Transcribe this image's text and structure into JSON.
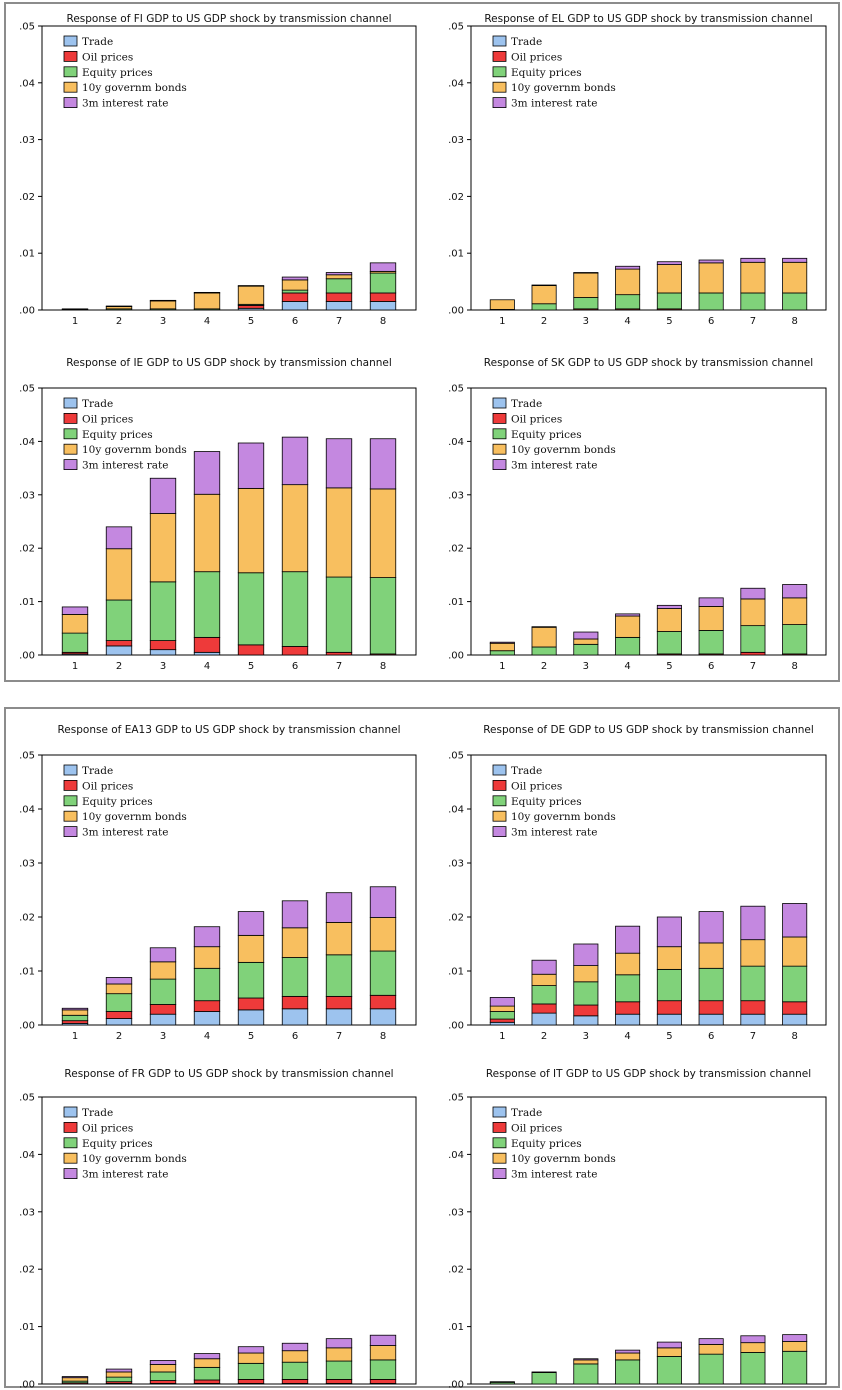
{
  "legend": [
    "Trade",
    "Oil prices",
    "Equity prices",
    "10y governm bonds",
    "3m interest rate"
  ],
  "colors": [
    "#9dc3ee",
    "#ee3a3a",
    "#80d27a",
    "#f8bf5f",
    "#c488e0"
  ],
  "chart_data": [
    {
      "type": "bar",
      "stacked": true,
      "title": "Response of FI GDP to US GDP shock by transmission channel",
      "categories": [
        "1",
        "2",
        "3",
        "4",
        "5",
        "6",
        "7",
        "8"
      ],
      "yticks": [
        ".00",
        ".01",
        ".02",
        ".03",
        ".04",
        ".05"
      ],
      "ylim": [
        0,
        0.05
      ],
      "series": [
        {
          "name": "Trade",
          "values": [
            0.0,
            0.0,
            0.0,
            0.0,
            0.0003,
            0.0015,
            0.0015,
            0.0015
          ]
        },
        {
          "name": "Oil prices",
          "values": [
            0.0,
            0.0,
            0.0,
            0.0,
            0.0005,
            0.0015,
            0.0015,
            0.0015
          ]
        },
        {
          "name": "Equity prices",
          "values": [
            0.0001,
            0.0002,
            0.0002,
            0.0002,
            0.0002,
            0.0005,
            0.0025,
            0.0035
          ]
        },
        {
          "name": "10y governm bonds",
          "values": [
            0.0001,
            0.0004,
            0.0014,
            0.0028,
            0.0032,
            0.0018,
            0.0007,
            0.0003
          ]
        },
        {
          "name": "3m interest rate",
          "values": [
            0.0,
            0.0001,
            0.0001,
            0.0001,
            0.0001,
            0.0005,
            0.0004,
            0.0015
          ]
        }
      ]
    },
    {
      "type": "bar",
      "stacked": true,
      "title": "Response of EL GDP to US GDP shock by transmission channel",
      "categories": [
        "1",
        "2",
        "3",
        "4",
        "5",
        "6",
        "7",
        "8"
      ],
      "yticks": [
        ".00",
        ".01",
        ".02",
        ".03",
        ".04",
        ".05"
      ],
      "ylim": [
        0,
        0.05
      ],
      "series": [
        {
          "name": "Trade",
          "values": [
            0.0,
            0.0,
            0.0,
            0.0,
            0.0,
            0.0,
            0.0,
            0.0
          ]
        },
        {
          "name": "Oil prices",
          "values": [
            0.0,
            0.0,
            0.0002,
            0.0002,
            0.0002,
            0.0,
            0.0,
            0.0
          ]
        },
        {
          "name": "Equity prices",
          "values": [
            0.0001,
            0.0011,
            0.002,
            0.0025,
            0.0028,
            0.003,
            0.003,
            0.003
          ]
        },
        {
          "name": "10y governm bonds",
          "values": [
            0.0017,
            0.0032,
            0.0043,
            0.0045,
            0.005,
            0.0053,
            0.0054,
            0.0054
          ]
        },
        {
          "name": "3m interest rate",
          "values": [
            0.0,
            0.0001,
            0.0001,
            0.0005,
            0.0005,
            0.0005,
            0.0007,
            0.0007
          ]
        }
      ]
    },
    {
      "type": "bar",
      "stacked": true,
      "title": "Response of IE GDP to US GDP shock by transmission channel",
      "categories": [
        "1",
        "2",
        "3",
        "4",
        "5",
        "6",
        "7",
        "8"
      ],
      "yticks": [
        ".00",
        ".01",
        ".02",
        ".03",
        ".04",
        ".05"
      ],
      "ylim": [
        0,
        0.05
      ],
      "series": [
        {
          "name": "Trade",
          "values": [
            0.0002,
            0.0017,
            0.001,
            0.0005,
            0.0,
            0.0,
            0.0,
            0.0
          ]
        },
        {
          "name": "Oil prices",
          "values": [
            0.0003,
            0.001,
            0.0017,
            0.0028,
            0.0019,
            0.0016,
            0.0005,
            0.0002
          ]
        },
        {
          "name": "Equity prices",
          "values": [
            0.0036,
            0.0076,
            0.011,
            0.0123,
            0.0135,
            0.014,
            0.0141,
            0.0143
          ]
        },
        {
          "name": "10y governm bonds",
          "values": [
            0.0035,
            0.0096,
            0.0128,
            0.0145,
            0.0158,
            0.0163,
            0.0167,
            0.0166
          ]
        },
        {
          "name": "3m interest rate",
          "values": [
            0.0014,
            0.0041,
            0.0066,
            0.008,
            0.0085,
            0.0089,
            0.0092,
            0.0094
          ]
        }
      ]
    },
    {
      "type": "bar",
      "stacked": true,
      "title": "Response of SK GDP to US GDP shock by transmission channel",
      "categories": [
        "1",
        "2",
        "3",
        "4",
        "5",
        "6",
        "7",
        "8"
      ],
      "yticks": [
        ".00",
        ".01",
        ".02",
        ".03",
        ".04",
        ".05"
      ],
      "ylim": [
        0,
        0.05
      ],
      "series": [
        {
          "name": "Trade",
          "values": [
            0.0,
            0.0,
            0.0,
            0.0,
            0.0,
            0.0,
            0.0,
            0.0
          ]
        },
        {
          "name": "Oil prices",
          "values": [
            0.0,
            0.0,
            0.0,
            0.0,
            0.0002,
            0.0002,
            0.0005,
            0.0002
          ]
        },
        {
          "name": "Equity prices",
          "values": [
            0.0008,
            0.0015,
            0.002,
            0.0033,
            0.0042,
            0.0044,
            0.005,
            0.0055
          ]
        },
        {
          "name": "10y governm bonds",
          "values": [
            0.0014,
            0.0037,
            0.001,
            0.004,
            0.0043,
            0.0045,
            0.005,
            0.005
          ]
        },
        {
          "name": "3m interest rate",
          "values": [
            0.0002,
            0.0001,
            0.0013,
            0.0004,
            0.0006,
            0.0016,
            0.002,
            0.0025
          ]
        }
      ]
    },
    {
      "type": "bar",
      "stacked": true,
      "title": "Response of EA13 GDP to US GDP shock by transmission channel",
      "categories": [
        "1",
        "2",
        "3",
        "4",
        "5",
        "6",
        "7",
        "8"
      ],
      "yticks": [
        ".00",
        ".01",
        ".02",
        ".03",
        ".04",
        ".05"
      ],
      "ylim": [
        0,
        0.05
      ],
      "series": [
        {
          "name": "Trade",
          "values": [
            0.0003,
            0.0012,
            0.002,
            0.0025,
            0.0028,
            0.003,
            0.003,
            0.003
          ]
        },
        {
          "name": "Oil prices",
          "values": [
            0.0005,
            0.0013,
            0.0018,
            0.002,
            0.0022,
            0.0023,
            0.0023,
            0.0025
          ]
        },
        {
          "name": "Equity prices",
          "values": [
            0.001,
            0.0033,
            0.0047,
            0.006,
            0.0066,
            0.0072,
            0.0077,
            0.0082
          ]
        },
        {
          "name": "10y governm bonds",
          "values": [
            0.001,
            0.0018,
            0.0032,
            0.004,
            0.005,
            0.0055,
            0.006,
            0.0062
          ]
        },
        {
          "name": "3m interest rate",
          "values": [
            0.0003,
            0.0012,
            0.0026,
            0.0037,
            0.0044,
            0.005,
            0.0055,
            0.0057
          ]
        }
      ]
    },
    {
      "type": "bar",
      "stacked": true,
      "title": "Response of DE GDP to US GDP shock by transmission channel",
      "categories": [
        "1",
        "2",
        "3",
        "4",
        "5",
        "6",
        "7",
        "8"
      ],
      "yticks": [
        ".00",
        ".01",
        ".02",
        ".03",
        ".04",
        ".05"
      ],
      "ylim": [
        0,
        0.05
      ],
      "series": [
        {
          "name": "Trade",
          "values": [
            0.0005,
            0.0022,
            0.0017,
            0.002,
            0.002,
            0.002,
            0.002,
            0.002
          ]
        },
        {
          "name": "Oil prices",
          "values": [
            0.0006,
            0.0017,
            0.002,
            0.0023,
            0.0025,
            0.0025,
            0.0025,
            0.0023
          ]
        },
        {
          "name": "Equity prices",
          "values": [
            0.0014,
            0.0034,
            0.0043,
            0.005,
            0.0058,
            0.006,
            0.0064,
            0.0066
          ]
        },
        {
          "name": "10y governm bonds",
          "values": [
            0.001,
            0.0021,
            0.003,
            0.004,
            0.0042,
            0.0047,
            0.0049,
            0.0054
          ]
        },
        {
          "name": "3m interest rate",
          "values": [
            0.0016,
            0.0026,
            0.004,
            0.005,
            0.0055,
            0.0058,
            0.0062,
            0.0062
          ]
        }
      ]
    },
    {
      "type": "bar",
      "stacked": true,
      "title": "Response of FR GDP to US GDP shock by transmission channel",
      "categories": [
        "1",
        "2",
        "3",
        "4",
        "5",
        "6",
        "7",
        "8"
      ],
      "yticks": [
        ".00",
        ".01",
        ".02",
        ".03",
        ".04",
        ".05"
      ],
      "ylim": [
        0,
        0.05
      ],
      "series": [
        {
          "name": "Trade",
          "values": [
            0.0,
            0.0001,
            0.0001,
            0.0001,
            0.0001,
            0.0001,
            0.0001,
            0.0001
          ]
        },
        {
          "name": "Oil prices",
          "values": [
            0.0002,
            0.0003,
            0.0005,
            0.0006,
            0.0007,
            0.0007,
            0.0007,
            0.0007
          ]
        },
        {
          "name": "Equity prices",
          "values": [
            0.0003,
            0.0008,
            0.0015,
            0.0022,
            0.0028,
            0.003,
            0.0032,
            0.0034
          ]
        },
        {
          "name": "10y governm bonds",
          "values": [
            0.0006,
            0.0009,
            0.0013,
            0.0015,
            0.0018,
            0.002,
            0.0023,
            0.0025
          ]
        },
        {
          "name": "3m interest rate",
          "values": [
            0.0002,
            0.0005,
            0.0007,
            0.0009,
            0.0011,
            0.0013,
            0.0016,
            0.0018
          ]
        }
      ]
    },
    {
      "type": "bar",
      "stacked": true,
      "title": "Response of IT GDP to US GDP shock by transmission channel",
      "categories": [
        "1",
        "2",
        "3",
        "4",
        "5",
        "6",
        "7",
        "8"
      ],
      "yticks": [
        ".00",
        ".01",
        ".02",
        ".03",
        ".04",
        ".05"
      ],
      "ylim": [
        0,
        0.05
      ],
      "series": [
        {
          "name": "Trade",
          "values": [
            0.0,
            0.0,
            0.0,
            0.0,
            0.0,
            0.0,
            0.0,
            0.0
          ]
        },
        {
          "name": "Oil prices",
          "values": [
            0.0,
            0.0,
            0.0,
            0.0,
            0.0,
            0.0,
            0.0,
            0.0
          ]
        },
        {
          "name": "Equity prices",
          "values": [
            0.0003,
            0.002,
            0.0035,
            0.0042,
            0.0048,
            0.0052,
            0.0055,
            0.0057
          ]
        },
        {
          "name": "10y governm bonds",
          "values": [
            0.0001,
            0.0001,
            0.0007,
            0.0012,
            0.0015,
            0.0017,
            0.0017,
            0.0017
          ]
        },
        {
          "name": "3m interest rate",
          "values": [
            0.0,
            0.0,
            0.0002,
            0.0005,
            0.001,
            0.001,
            0.0012,
            0.0012
          ]
        }
      ]
    }
  ]
}
